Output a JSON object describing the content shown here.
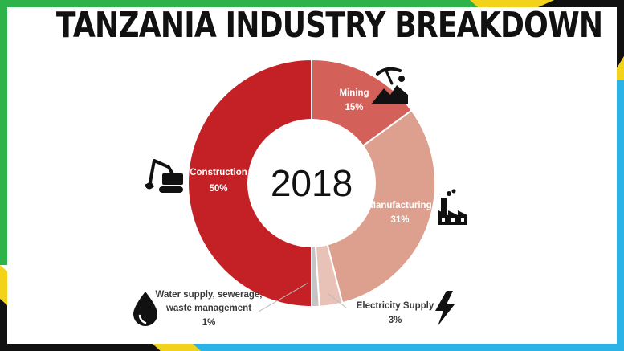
{
  "title": "TANZANIA INDUSTRY BREAKDOWN",
  "center_label": "2018",
  "colors": {
    "construction": "#c42126",
    "mining": "#d4605a",
    "manufacturing": "#dda08e",
    "electricity": "#e9c2b7",
    "water": "#c7c3c3",
    "border_green": "#2db34a",
    "border_yellow": "#f3d21c",
    "border_blue": "#2bb3e8",
    "border_black": "#111111"
  },
  "icons": {
    "construction": "excavator-icon",
    "mining": "mining-pickaxe-icon",
    "manufacturing": "factory-icon",
    "electricity": "lightning-bolt-icon",
    "water": "water-drop-icon"
  },
  "chart_data": {
    "type": "pie",
    "categories": [
      "Mining",
      "Manufacturing",
      "Electricity Supply",
      "Water supply, sewerage, waste management",
      "Construction"
    ],
    "values": [
      15,
      31,
      3,
      1,
      50
    ],
    "value_labels": [
      "15%",
      "31%",
      "3%",
      "1%",
      "50%"
    ],
    "water_label_lines": [
      "Water supply, sewerage,",
      "waste management"
    ],
    "donut": true
  }
}
